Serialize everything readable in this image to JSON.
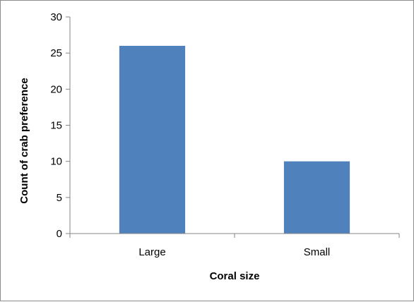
{
  "chart_data": {
    "type": "bar",
    "categories": [
      "Large",
      "Small"
    ],
    "values": [
      26,
      10
    ],
    "title": "",
    "xlabel": "Coral size",
    "ylabel": "Count of crab preference",
    "ylim": [
      0,
      30
    ],
    "yticks": [
      0,
      5,
      10,
      15,
      20,
      25,
      30
    ],
    "grid": false,
    "legend": "none",
    "bar_color": "#4f81bd",
    "axis_color": "#868686"
  }
}
